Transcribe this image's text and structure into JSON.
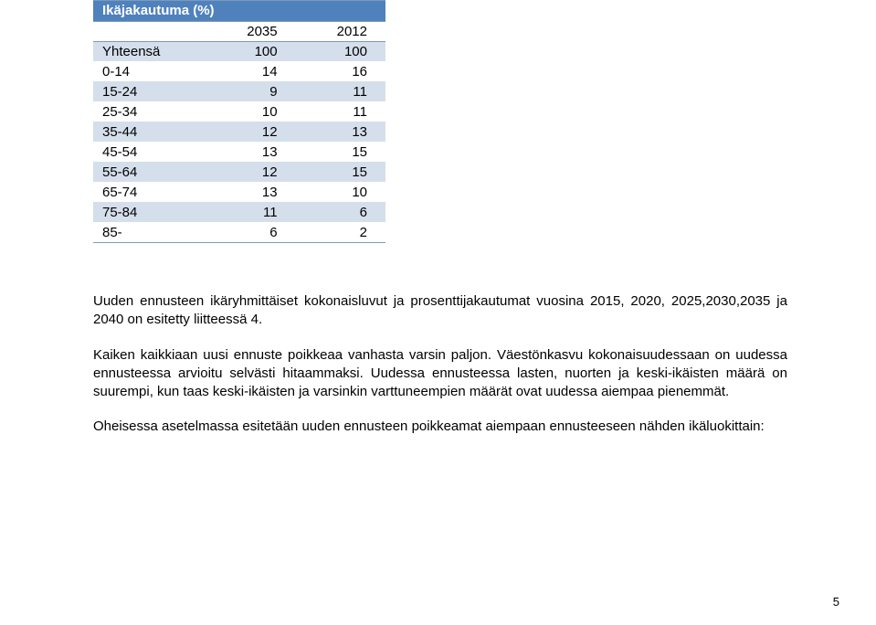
{
  "table": {
    "title": "Ikäjakautuma (%)",
    "years": [
      "2035",
      "2012"
    ],
    "rows": [
      {
        "label": "Yhteensä",
        "a": "100",
        "b": "100"
      },
      {
        "label": "0-14",
        "a": "14",
        "b": "16"
      },
      {
        "label": "15-24",
        "a": "9",
        "b": "11"
      },
      {
        "label": "25-34",
        "a": "10",
        "b": "11"
      },
      {
        "label": "35-44",
        "a": "12",
        "b": "13"
      },
      {
        "label": "45-54",
        "a": "13",
        "b": "15"
      },
      {
        "label": "55-64",
        "a": "12",
        "b": "15"
      },
      {
        "label": "65-74",
        "a": "13",
        "b": "10"
      },
      {
        "label": "75-84",
        "a": "11",
        "b": "6"
      },
      {
        "label": "85-",
        "a": "6",
        "b": "2"
      }
    ],
    "header_bg": "#4f81bd",
    "header_fg": "#ffffff",
    "band_bg": "#d5dfec",
    "border": "#7d99b8",
    "font_size": 15
  },
  "paragraphs": {
    "p1": "Uuden ennusteen ikäryhmittäiset kokonaisluvut ja prosenttijakautumat vuosina 2015, 2020, 2025,2030,2035 ja 2040 on esitetty liitteessä 4.",
    "p2": "Kaiken kaikkiaan uusi ennuste poikkeaa vanhasta varsin paljon. Väestönkasvu kokonaisuudessaan on uudessa ennusteessa arvioitu selvästi hitaammaksi. Uudessa ennusteessa lasten, nuorten ja keski-ikäisten määrä on suurempi, kun taas keski-ikäisten ja varsinkin varttuneempien määrät ovat uudessa aiempaa pienemmät.",
    "p3": "Oheisessa asetelmassa esitetään uuden ennusteen poikkeamat aiempaan ennusteeseen nähden ikäluokittain:"
  },
  "page_number": "5"
}
